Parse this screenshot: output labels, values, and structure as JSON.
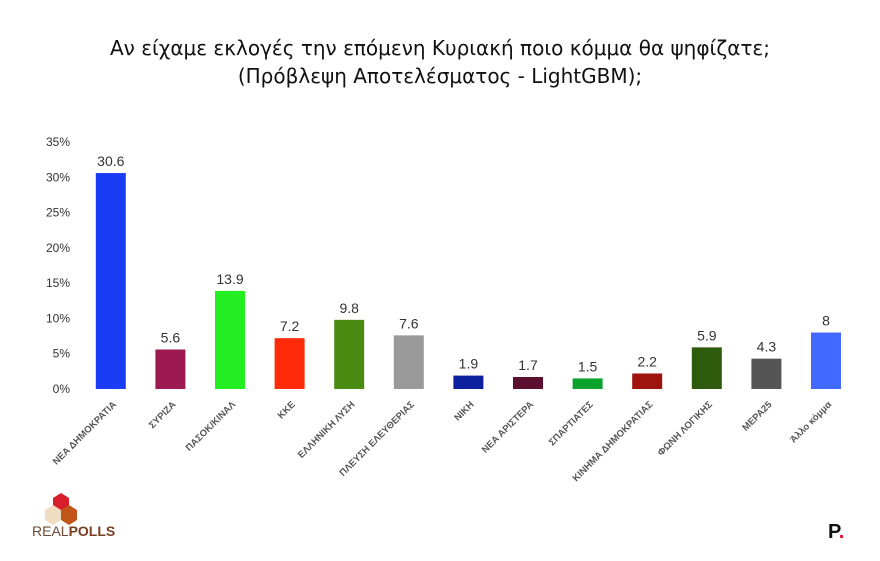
{
  "title_line1": "Αν είχαμε εκλογές την επόμενη Κυριακή ποιο κόμμα θα ψηφίζατε;",
  "title_line2": "(Πρόβλεψη Αποτελέσματος - LightGBM);",
  "chart_data": {
    "type": "bar",
    "categories": [
      "ΝΕΑ ΔΗΜΟΚΡΑΤΙΑ",
      "ΣΥΡΙΖΑ",
      "ΠΑΣΟΚ/ΚΙΝΑΛ",
      "ΚΚΕ",
      "ΕΛΛΗΝΙΚΗ ΛΥΣΗ",
      "ΠΛΕΥΣΗ ΕΛΕΥΘΕΡΙΑΣ",
      "ΝΙΚΗ",
      "ΝΕΑ ΑΡΙΣΤΕΡΑ",
      "ΣΠΑΡΤΙΑΤΕΣ",
      "ΚΙΝΗΜΑ ΔΗΜΟΚΡΑΤΙΑΣ",
      "ΦΩΝΗ ΛΟΓΙΚΗΣ",
      "ΜΕΡΑ25",
      "Άλλο κόμμα"
    ],
    "values": [
      30.6,
      5.6,
      13.9,
      7.2,
      9.8,
      7.6,
      1.9,
      1.7,
      1.5,
      2.2,
      5.9,
      4.3,
      8
    ],
    "value_labels": [
      "30.6",
      "5.6",
      "13.9",
      "7.2",
      "9.8",
      "7.6",
      "1.9",
      "1.7",
      "1.5",
      "2.2",
      "5.9",
      "4.3",
      "8"
    ],
    "colors": [
      "#1a3cf5",
      "#9c1a50",
      "#22ee22",
      "#ff2a0a",
      "#4a8c12",
      "#9a9a9a",
      "#0d209e",
      "#5c1030",
      "#0aa22a",
      "#a01410",
      "#2e5a0e",
      "#555555",
      "#4169ff"
    ],
    "yticks": [
      "0%",
      "5%",
      "10%",
      "15%",
      "20%",
      "25%",
      "30%",
      "35%"
    ],
    "ylim": [
      0,
      35
    ],
    "xlabel": "",
    "ylabel": "",
    "grid": false
  },
  "logo": {
    "brand_a": "REAL",
    "brand_b": "POLLS",
    "p_logo": "P"
  }
}
